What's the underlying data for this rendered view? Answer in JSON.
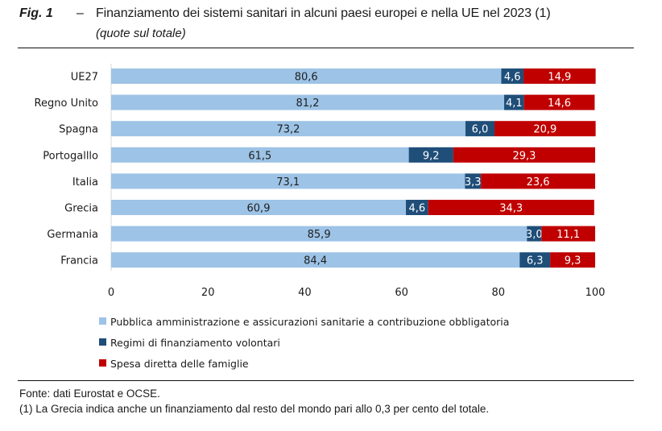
{
  "figure": {
    "label": "Fig. 1",
    "dash": "–",
    "title": "Finanziamento dei sistemi sanitari in alcuni paesi europei e nella UE nel 2023 (1)",
    "subtitle": "(quote sul totale)"
  },
  "footer": {
    "source": "Fonte: dati Eurostat e OCSE.",
    "note": "(1) La Grecia indica anche un finanziamento dal resto del mondo pari allo 0,3 per cento del totale."
  },
  "chart_data": {
    "type": "bar",
    "orientation": "horizontal",
    "stacked": true,
    "title": "Finanziamento dei sistemi sanitari in alcuni paesi europei e nella UE nel 2023 (1)",
    "subtitle": "(quote sul totale)",
    "xlabel": "",
    "ylabel": "",
    "xlim": [
      0,
      100
    ],
    "xticks": [
      0,
      20,
      40,
      60,
      80,
      100
    ],
    "grid": false,
    "legend_position": "bottom-left",
    "decimal_separator": ",",
    "categories": [
      "UE27",
      "Regno Unito",
      "Spagna",
      "Portogalllo",
      "Italia",
      "Grecia",
      "Germania",
      "Francia"
    ],
    "series": [
      {
        "name": "Pubblica amministrazione e assicurazioni sanitarie a contribuzione obbligatoria",
        "color": "#9dc3e6",
        "label_color": "#1f1f1f",
        "values": [
          80.6,
          81.2,
          73.2,
          61.5,
          73.1,
          60.9,
          85.9,
          84.4
        ]
      },
      {
        "name": "Regimi di finanziamento volontari",
        "color": "#1f4e79",
        "label_color": "#ffffff",
        "values": [
          4.6,
          4.1,
          6.0,
          9.2,
          3.3,
          4.6,
          3.0,
          6.3
        ]
      },
      {
        "name": "Spesa diretta delle famiglie",
        "color": "#c00000",
        "label_color": "#ffffff",
        "values": [
          14.9,
          14.6,
          20.9,
          29.3,
          23.6,
          34.3,
          11.1,
          9.3
        ]
      }
    ]
  }
}
